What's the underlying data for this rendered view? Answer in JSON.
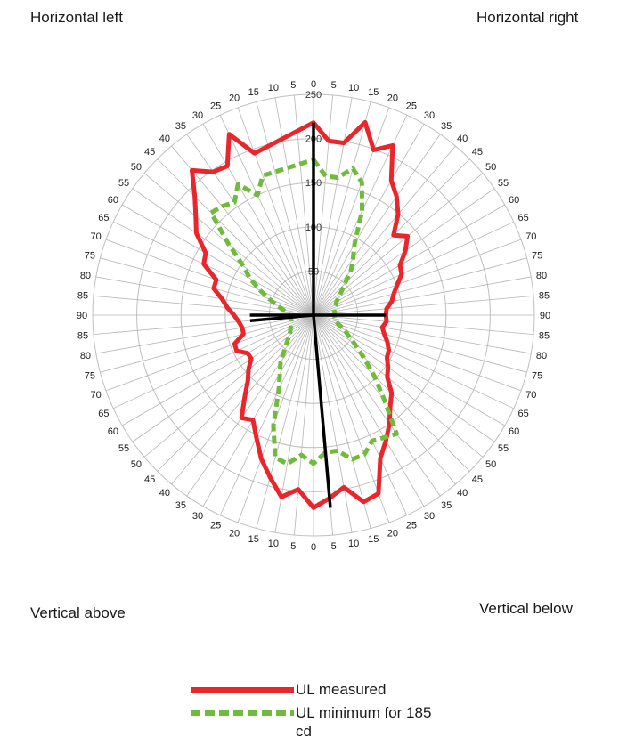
{
  "corners": {
    "top_left": "Horizontal left",
    "top_right": "Horizontal right",
    "bottom_left": "Vertical above",
    "bottom_right": "Vertical below"
  },
  "chart_data": {
    "type": "radar",
    "radial_range": [
      0,
      250
    ],
    "radial_ticks": [
      0,
      50,
      100,
      150,
      200,
      250
    ],
    "radial_tick_labels": [
      "0",
      "50",
      "100",
      "150",
      "200",
      "250"
    ],
    "angle_step_deg": 5,
    "angle_labels_right_top": [
      "0",
      "5",
      "10",
      "15",
      "20",
      "25",
      "30",
      "35",
      "40",
      "45",
      "50",
      "55",
      "60",
      "65",
      "70",
      "75",
      "80",
      "85",
      "90"
    ],
    "angle_labels_right_bottom": [
      "85",
      "80",
      "75",
      "70",
      "65",
      "60",
      "55",
      "50",
      "45",
      "40",
      "35",
      "30",
      "25",
      "20",
      "15",
      "10",
      "5",
      "0"
    ],
    "angle_labels_left_bottom": [
      "5",
      "10",
      "15",
      "20",
      "25",
      "30",
      "35",
      "40",
      "45",
      "50",
      "55",
      "60",
      "65",
      "70",
      "75",
      "80",
      "85",
      "90"
    ],
    "angle_labels_left_top": [
      "85",
      "80",
      "75",
      "70",
      "65",
      "60",
      "55",
      "50",
      "45",
      "40",
      "35",
      "30",
      "25",
      "20",
      "15",
      "10",
      "5"
    ],
    "grid": true,
    "legend_position": "bottom",
    "series": [
      {
        "name": "UL measured",
        "color": "#e8262b",
        "style": "solid",
        "values": [
          218,
          198,
          198,
          226,
          199,
          212,
          176,
          164,
          149,
          128,
          139,
          127,
          113,
          110,
          101,
          94,
          90,
          83,
          82,
          83,
          79,
          83,
          89,
          94,
          96,
          103,
          109,
          125,
          135,
          150,
          164,
          179,
          215,
          219,
          198,
          208,
          218,
          198,
          209,
          190,
          173,
          153,
          137,
          142,
          121,
          105,
          96,
          86,
          86,
          96,
          95,
          82,
          82,
          85,
          90,
          98,
          105,
          117,
          117,
          137,
          141,
          162,
          174,
          190,
          214,
          198,
          195,
          226,
          195
        ]
      },
      {
        "name": "UL minimum for 185 cd",
        "color": "#70ba3c",
        "style": "dashed",
        "values": [
          176,
          158,
          158,
          172,
          160,
          130,
          93,
          78,
          66,
          50,
          41,
          34,
          30,
          28,
          25,
          24,
          24,
          24,
          24,
          24,
          25,
          26,
          30,
          38,
          45,
          57,
          74,
          97,
          124,
          164,
          160,
          157,
          168,
          169,
          156,
          156,
          168,
          159,
          171,
          167,
          133,
          93,
          76,
          65,
          51,
          42,
          36,
          32,
          30,
          28,
          27,
          26,
          26,
          26,
          28,
          30,
          35,
          43,
          53,
          67,
          83,
          97,
          126,
          164,
          161,
          156,
          171,
          150,
          168
        ]
      },
      {
        "name": "axes",
        "color": "#000000",
        "style": "solid",
        "values": [
          218,
          0,
          0,
          0,
          0,
          0,
          0,
          0,
          0,
          0,
          0,
          0,
          0,
          0,
          0,
          0,
          0,
          0,
          82,
          0,
          0,
          0,
          0,
          0,
          0,
          0,
          0,
          0,
          0,
          0,
          0,
          0,
          0,
          0,
          0,
          219,
          0,
          0,
          0,
          0,
          0,
          0,
          0,
          0,
          0,
          0,
          0,
          0,
          0,
          0,
          0,
          0,
          0,
          72,
          0,
          0,
          0,
          0,
          0,
          0,
          0,
          0,
          0,
          0,
          0,
          0,
          0,
          0,
          0,
          0
        ]
      }
    ]
  },
  "legend": [
    {
      "label": "UL measured",
      "color": "#e8262b"
    },
    {
      "label": "UL minimum for 185 cd",
      "color": "#70ba3c"
    }
  ]
}
